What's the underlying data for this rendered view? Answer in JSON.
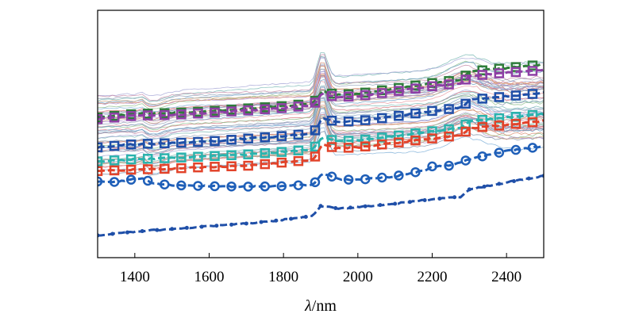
{
  "chart_data": {
    "type": "line",
    "title": "",
    "xlabel_symbol": "λ",
    "xlabel_unit": "/nm",
    "ylabel": "",
    "xlim": [
      1300,
      2500
    ],
    "ylim": [
      0,
      1
    ],
    "x_ticks": [
      1400,
      1600,
      1800,
      2000,
      2200,
      2400
    ],
    "x_tick_labels": [
      "1400",
      "1600",
      "1800",
      "2000",
      "2200",
      "2400"
    ],
    "grid": false,
    "legend": "none",
    "background_spectra_count": 55,
    "highlighted_series": [
      {
        "name": "green-square",
        "color": "#2e7d3a",
        "marker": "square",
        "points": [
          [
            1300,
            0.567
          ],
          [
            1400,
            0.581
          ],
          [
            1500,
            0.585
          ],
          [
            1600,
            0.592
          ],
          [
            1700,
            0.603
          ],
          [
            1800,
            0.613
          ],
          [
            1880,
            0.624
          ],
          [
            1905,
            0.676
          ],
          [
            1940,
            0.658
          ],
          [
            2000,
            0.663
          ],
          [
            2100,
            0.684
          ],
          [
            2200,
            0.706
          ],
          [
            2280,
            0.72
          ],
          [
            2300,
            0.752
          ],
          [
            2400,
            0.767
          ],
          [
            2500,
            0.781
          ]
        ]
      },
      {
        "name": "purple-square",
        "color": "#8e3fa5",
        "marker": "square",
        "points": [
          [
            1300,
            0.56
          ],
          [
            1400,
            0.574
          ],
          [
            1500,
            0.577
          ],
          [
            1600,
            0.585
          ],
          [
            1700,
            0.595
          ],
          [
            1800,
            0.605
          ],
          [
            1880,
            0.617
          ],
          [
            1905,
            0.665
          ],
          [
            1940,
            0.648
          ],
          [
            2000,
            0.653
          ],
          [
            2100,
            0.672
          ],
          [
            2200,
            0.693
          ],
          [
            2280,
            0.706
          ],
          [
            2300,
            0.734
          ],
          [
            2400,
            0.748
          ],
          [
            2500,
            0.758
          ]
        ]
      },
      {
        "name": "blue-square",
        "color": "#1f4fa8",
        "marker": "square",
        "points": [
          [
            1300,
            0.446
          ],
          [
            1400,
            0.459
          ],
          [
            1500,
            0.463
          ],
          [
            1600,
            0.47
          ],
          [
            1700,
            0.481
          ],
          [
            1800,
            0.492
          ],
          [
            1880,
            0.502
          ],
          [
            1905,
            0.566
          ],
          [
            1940,
            0.549
          ],
          [
            2000,
            0.552
          ],
          [
            2100,
            0.571
          ],
          [
            2200,
            0.593
          ],
          [
            2280,
            0.607
          ],
          [
            2300,
            0.638
          ],
          [
            2400,
            0.652
          ],
          [
            2500,
            0.666
          ]
        ]
      },
      {
        "name": "teal-square",
        "color": "#2bb3ad",
        "marker": "square",
        "points": [
          [
            1300,
            0.389
          ],
          [
            1400,
            0.398
          ],
          [
            1500,
            0.403
          ],
          [
            1600,
            0.41
          ],
          [
            1700,
            0.417
          ],
          [
            1800,
            0.428
          ],
          [
            1880,
            0.439
          ],
          [
            1905,
            0.488
          ],
          [
            1940,
            0.471
          ],
          [
            2000,
            0.474
          ],
          [
            2100,
            0.492
          ],
          [
            2200,
            0.511
          ],
          [
            2280,
            0.525
          ],
          [
            2300,
            0.552
          ],
          [
            2400,
            0.566
          ],
          [
            2500,
            0.581
          ]
        ]
      },
      {
        "name": "red-square",
        "color": "#e2432a",
        "marker": "square",
        "points": [
          [
            1300,
            0.35
          ],
          [
            1400,
            0.356
          ],
          [
            1500,
            0.36
          ],
          [
            1600,
            0.367
          ],
          [
            1700,
            0.371
          ],
          [
            1800,
            0.385
          ],
          [
            1880,
            0.396
          ],
          [
            1905,
            0.46
          ],
          [
            1940,
            0.442
          ],
          [
            2000,
            0.446
          ],
          [
            2100,
            0.464
          ],
          [
            2200,
            0.482
          ],
          [
            2280,
            0.496
          ],
          [
            2300,
            0.523
          ],
          [
            2400,
            0.537
          ],
          [
            2500,
            0.552
          ]
        ]
      },
      {
        "name": "blue-circle",
        "color": "#1f5fb8",
        "marker": "circle",
        "points": [
          [
            1300,
            0.308
          ],
          [
            1350,
            0.306
          ],
          [
            1420,
            0.322
          ],
          [
            1450,
            0.3
          ],
          [
            1500,
            0.293
          ],
          [
            1600,
            0.289
          ],
          [
            1700,
            0.287
          ],
          [
            1800,
            0.289
          ],
          [
            1880,
            0.296
          ],
          [
            1905,
            0.341
          ],
          [
            1950,
            0.317
          ],
          [
            2000,
            0.314
          ],
          [
            2100,
            0.329
          ],
          [
            2180,
            0.353
          ],
          [
            2200,
            0.369
          ],
          [
            2250,
            0.372
          ],
          [
            2300,
            0.398
          ],
          [
            2400,
            0.431
          ],
          [
            2500,
            0.45
          ]
        ]
      },
      {
        "name": "blue-dashed",
        "color": "#1f4fa8",
        "marker": "dot",
        "points": [
          [
            1300,
            0.09
          ],
          [
            1400,
            0.105
          ],
          [
            1500,
            0.116
          ],
          [
            1600,
            0.127
          ],
          [
            1700,
            0.138
          ],
          [
            1800,
            0.153
          ],
          [
            1880,
            0.169
          ],
          [
            1900,
            0.209
          ],
          [
            1950,
            0.198
          ],
          [
            2000,
            0.205
          ],
          [
            2100,
            0.218
          ],
          [
            2200,
            0.236
          ],
          [
            2280,
            0.247
          ],
          [
            2300,
            0.276
          ],
          [
            2400,
            0.304
          ],
          [
            2500,
            0.331
          ]
        ]
      }
    ]
  }
}
